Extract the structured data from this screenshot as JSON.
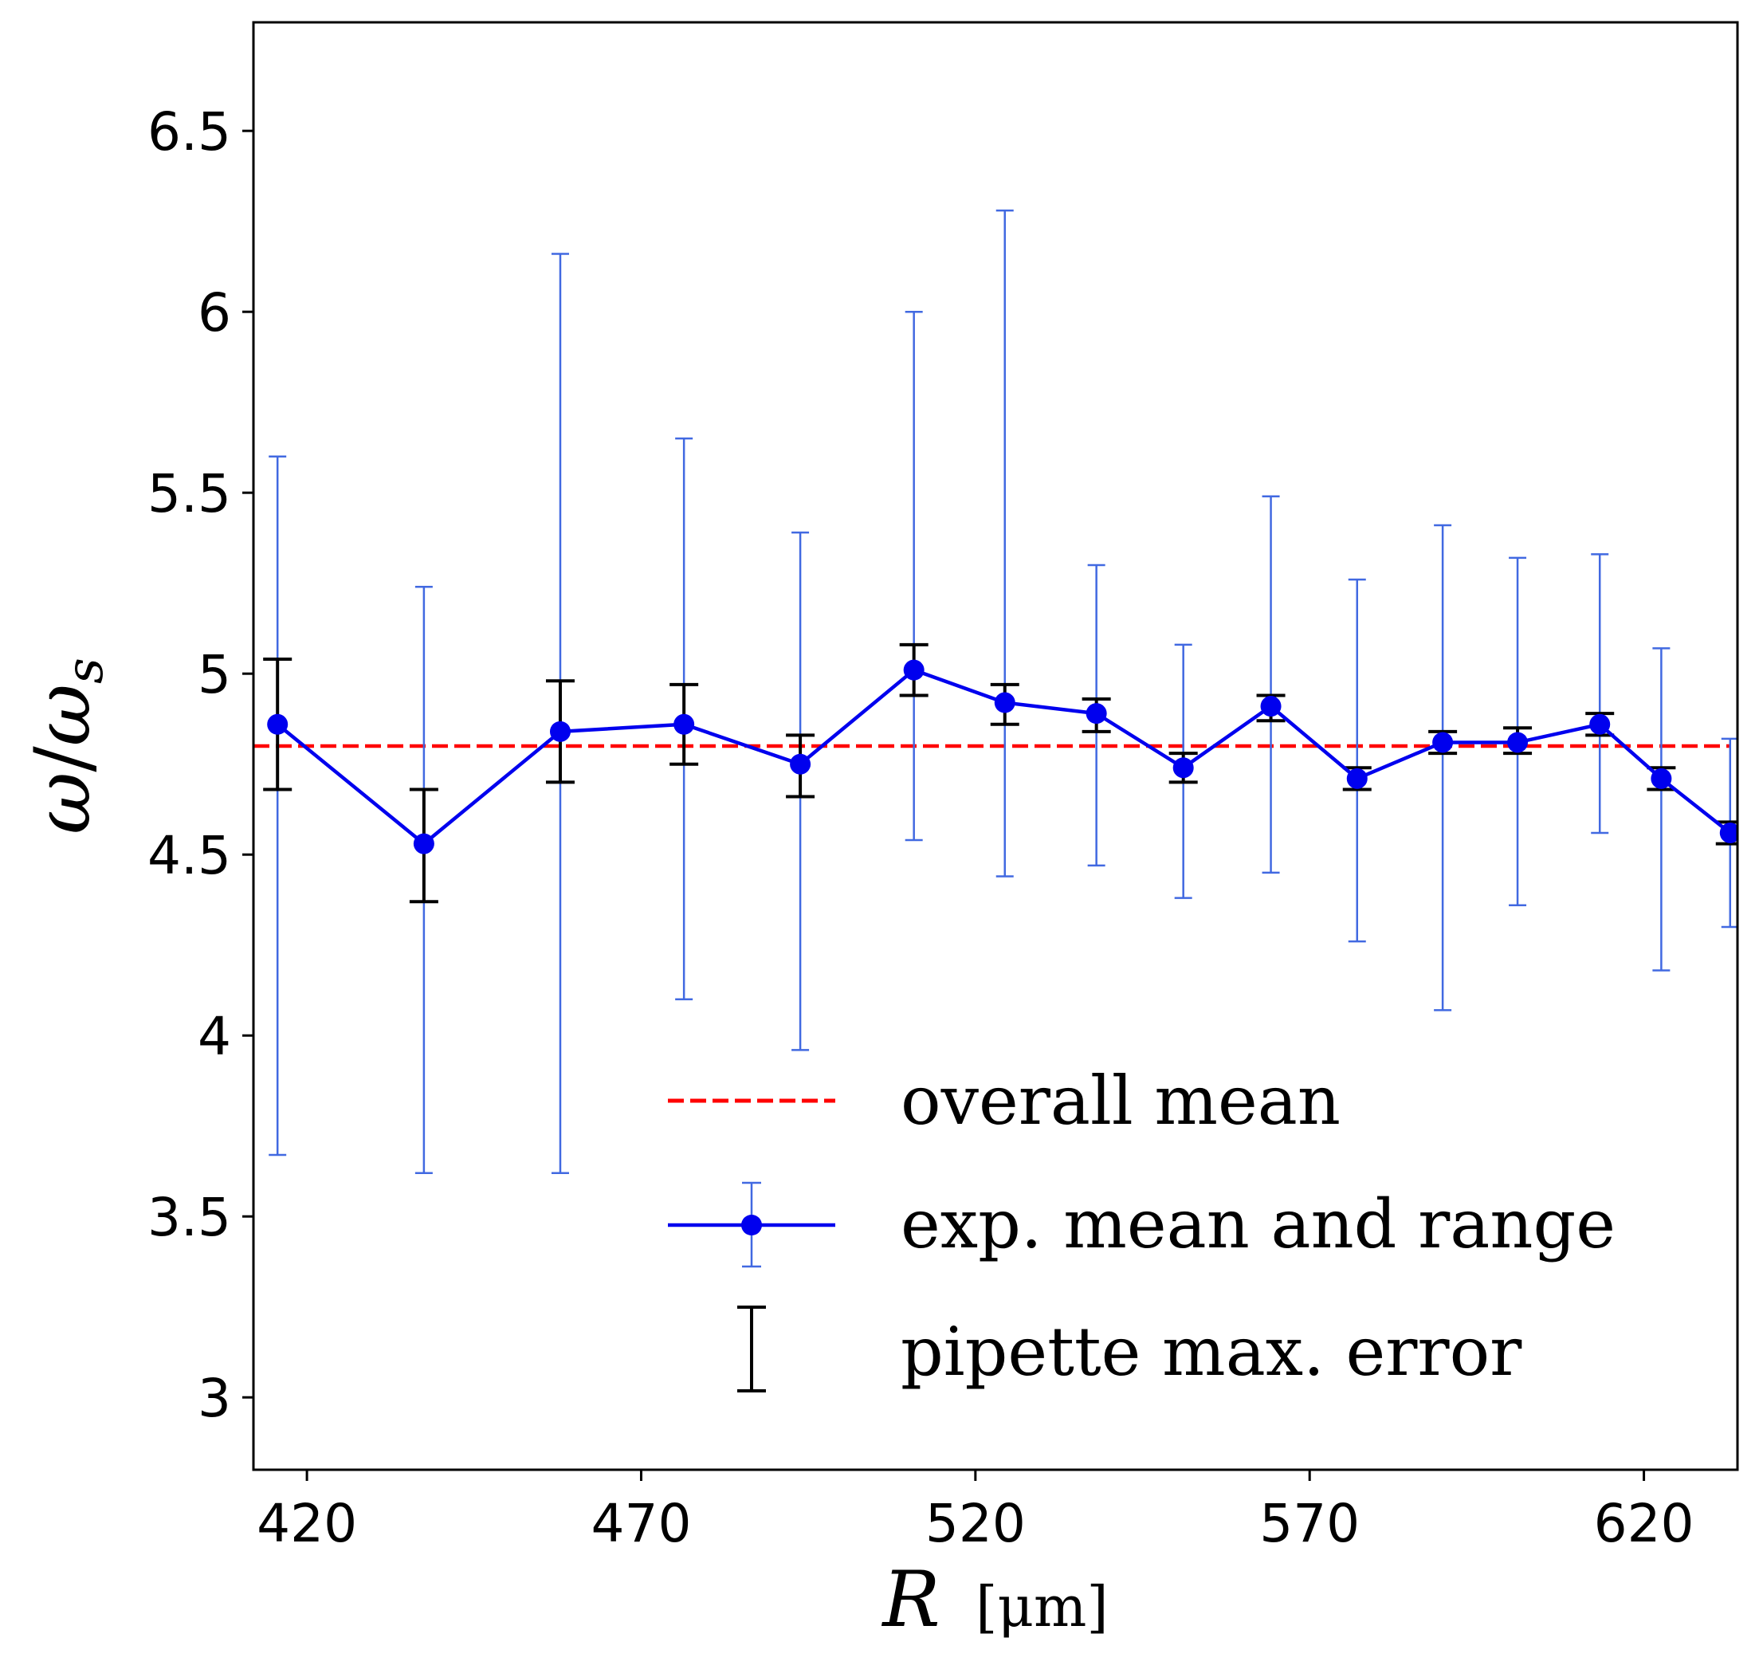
{
  "chart_data": {
    "type": "line",
    "title": "",
    "xlabel": {
      "symbol": "R",
      "unit": "[μm]"
    },
    "ylabel": {
      "symbol": "ω",
      "slash": "/",
      "subsymbol": "ω",
      "subscript": "s"
    },
    "xlim": [
      412,
      634
    ],
    "ylim": [
      2.8,
      6.8
    ],
    "x_ticks": [
      420,
      470,
      520,
      570,
      620
    ],
    "y_ticks": [
      3,
      3.5,
      4,
      4.5,
      5,
      5.5,
      6,
      6.5
    ],
    "y_tick_labels": [
      "3",
      "3.5",
      "4",
      "4.5",
      "5",
      "5.5",
      "6",
      "6.5"
    ],
    "legend_position": "lower-right",
    "overall_mean": 4.8,
    "series": [
      {
        "name": "exp. mean and range",
        "color": "#0000ee",
        "range_color": "#4169e1",
        "x": [
          415.6,
          437.5,
          457.9,
          476.4,
          493.8,
          510.8,
          524.4,
          538.1,
          551.1,
          564.2,
          577.1,
          589.9,
          601.1,
          613.4,
          622.6,
          632.9
        ],
        "y": [
          4.86,
          4.53,
          4.84,
          4.86,
          4.75,
          5.01,
          4.92,
          4.89,
          4.74,
          4.91,
          4.71,
          4.81,
          4.81,
          4.86,
          4.71,
          4.56
        ],
        "range_low": [
          3.67,
          3.62,
          3.62,
          4.1,
          3.96,
          4.54,
          4.44,
          4.47,
          4.38,
          4.45,
          4.26,
          4.07,
          4.36,
          4.56,
          4.18,
          4.3
        ],
        "range_high": [
          5.6,
          5.24,
          6.16,
          5.65,
          5.39,
          6.0,
          6.28,
          5.3,
          5.08,
          5.49,
          5.26,
          5.41,
          5.32,
          5.33,
          5.07,
          4.82
        ]
      },
      {
        "name": "pipette max. error",
        "color": "#000000",
        "err_low": [
          4.68,
          4.37,
          4.7,
          4.75,
          4.66,
          4.94,
          4.86,
          4.84,
          4.7,
          4.87,
          4.68,
          4.78,
          4.78,
          4.83,
          4.68,
          4.53
        ],
        "err_high": [
          5.04,
          4.68,
          4.98,
          4.97,
          4.83,
          5.08,
          4.97,
          4.93,
          4.78,
          4.94,
          4.74,
          4.84,
          4.85,
          4.89,
          4.74,
          4.59
        ]
      }
    ],
    "legend": [
      {
        "label": "overall mean",
        "style": "dashed-red"
      },
      {
        "label": "exp. mean and range",
        "style": "blue-line-marker-errorbar"
      },
      {
        "label": "pipette max. error",
        "style": "black-errorbar"
      }
    ],
    "colors": {
      "mean_line": "#ff0000",
      "series": "#0000ee",
      "range": "#4169e1",
      "pipette": "#000000"
    }
  }
}
